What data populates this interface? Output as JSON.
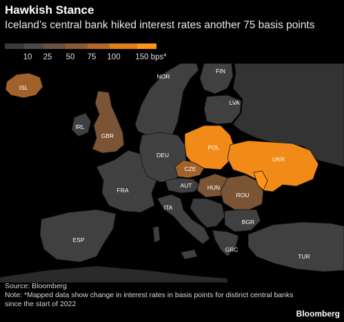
{
  "header": {
    "title": "Hawkish Stance",
    "subtitle": "Iceland’s central bank hiked interest rates another 75 basis points"
  },
  "legend": {
    "ticks": [
      "10",
      "25",
      "50",
      "75",
      "100",
      "150 bps*"
    ],
    "colors": [
      "#3a3a3a",
      "#4e4a47",
      "#6b5240",
      "#8a5a35",
      "#b46a26",
      "#e07f15",
      "#ff9418"
    ]
  },
  "map": {
    "countries": [
      {
        "code": "ISL",
        "bin": 4
      },
      {
        "code": "NOR",
        "bin": 0
      },
      {
        "code": "FIN",
        "bin": 0
      },
      {
        "code": "LVA",
        "bin": 0
      },
      {
        "code": "IRL",
        "bin": 0
      },
      {
        "code": "GBR",
        "bin": 3
      },
      {
        "code": "DEU",
        "bin": 0
      },
      {
        "code": "POL",
        "bin": 5
      },
      {
        "code": "CZE",
        "bin": 4
      },
      {
        "code": "UKR",
        "bin": 5
      },
      {
        "code": "FRA",
        "bin": 0
      },
      {
        "code": "AUT",
        "bin": 0
      },
      {
        "code": "HUN",
        "bin": 3
      },
      {
        "code": "ROU",
        "bin": 3
      },
      {
        "code": "ITA",
        "bin": 0
      },
      {
        "code": "BGR",
        "bin": 0
      },
      {
        "code": "ESP",
        "bin": 0
      },
      {
        "code": "GRC",
        "bin": 0
      },
      {
        "code": "TUR",
        "bin": 0
      }
    ]
  },
  "footer": {
    "source": "Source: Bloomberg",
    "note": "Note: *Mapped data show change in interest rates in basis points for distinct central banks since the start of 2022",
    "brand": "Bloomberg"
  }
}
